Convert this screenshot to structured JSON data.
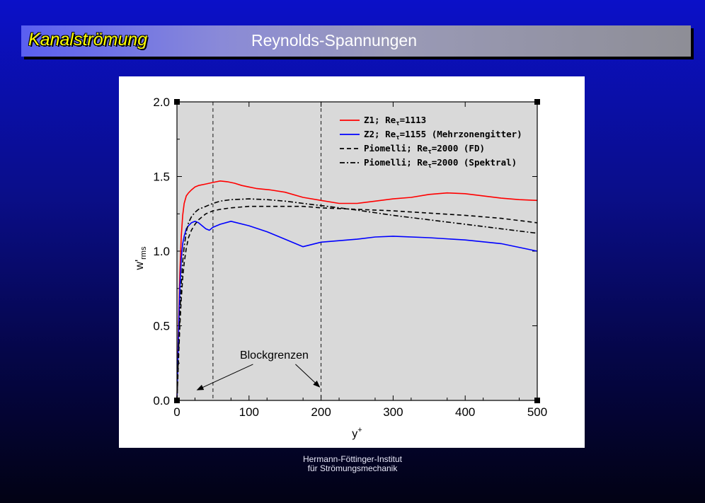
{
  "header": {
    "section": "Kanalströmung",
    "title": "Reynolds-Spannungen"
  },
  "footer": {
    "line1": "Hermann-Föttinger-Institut",
    "line2": "für Strömungsmechanik"
  },
  "chart_data": {
    "type": "line",
    "title": "",
    "xlabel": "y",
    "xlabel_superscript": "+",
    "ylabel": "w'",
    "ylabel_subscript": "rms",
    "xlim": [
      0,
      500
    ],
    "ylim": [
      0.0,
      2.0
    ],
    "xticks": [
      0,
      100,
      200,
      300,
      400,
      500
    ],
    "xtick_labels": [
      "0",
      "100",
      "200",
      "300",
      "400",
      "500"
    ],
    "yticks": [
      0.0,
      0.5,
      1.0,
      1.5,
      2.0
    ],
    "ytick_labels": [
      "0.0",
      "0.5",
      "1.0",
      "1.5",
      "2.0"
    ],
    "grid": false,
    "legend_position": "top-right",
    "vertical_lines": [
      50,
      200
    ],
    "annotation": {
      "text": "Blockgrenzen",
      "arrow_targets": [
        [
          28,
          0.07
        ],
        [
          198,
          0.09
        ]
      ],
      "anchor": [
        135,
        0.28
      ]
    },
    "series": [
      {
        "name": "Z1; Re",
        "name_sub": "τ",
        "name_rest": "=1113",
        "color": "#ff0000",
        "dash": "solid",
        "x": [
          0,
          2,
          4,
          6,
          8,
          10,
          13,
          16,
          20,
          25,
          30,
          40,
          50,
          60,
          70,
          80,
          90,
          100,
          110,
          130,
          150,
          175,
          200,
          225,
          250,
          275,
          300,
          325,
          350,
          375,
          400,
          425,
          450,
          475,
          500
        ],
        "y": [
          0.0,
          0.45,
          0.85,
          1.1,
          1.24,
          1.32,
          1.37,
          1.39,
          1.41,
          1.43,
          1.44,
          1.45,
          1.46,
          1.47,
          1.465,
          1.455,
          1.44,
          1.43,
          1.42,
          1.41,
          1.395,
          1.36,
          1.34,
          1.32,
          1.32,
          1.335,
          1.35,
          1.36,
          1.38,
          1.39,
          1.385,
          1.37,
          1.355,
          1.345,
          1.34
        ]
      },
      {
        "name": "Z2; Re",
        "name_sub": "τ",
        "name_rest": "=1155 (Mehrzonengitter)",
        "color": "#0000ff",
        "dash": "solid",
        "x": [
          0,
          2,
          4,
          6,
          8,
          10,
          13,
          16,
          20,
          25,
          30,
          35,
          40,
          45,
          50,
          60,
          75,
          100,
          125,
          150,
          175,
          200,
          225,
          250,
          275,
          300,
          350,
          400,
          450,
          500
        ],
        "y": [
          0.0,
          0.4,
          0.75,
          0.95,
          1.05,
          1.1,
          1.15,
          1.17,
          1.19,
          1.2,
          1.19,
          1.17,
          1.15,
          1.14,
          1.16,
          1.18,
          1.2,
          1.17,
          1.13,
          1.08,
          1.03,
          1.06,
          1.07,
          1.08,
          1.095,
          1.1,
          1.09,
          1.075,
          1.05,
          1.0
        ]
      },
      {
        "name": "Piomelli; Re",
        "name_sub": "τ",
        "name_rest": "=2000 (FD)",
        "color": "#000000",
        "dash": "dashed",
        "x": [
          0,
          2,
          4,
          6,
          8,
          10,
          13,
          16,
          20,
          25,
          30,
          40,
          50,
          60,
          75,
          100,
          125,
          150,
          175,
          200,
          250,
          300,
          350,
          400,
          450,
          500
        ],
        "y": [
          0.0,
          0.25,
          0.5,
          0.68,
          0.82,
          0.92,
          1.02,
          1.09,
          1.14,
          1.18,
          1.21,
          1.25,
          1.27,
          1.28,
          1.29,
          1.3,
          1.3,
          1.3,
          1.3,
          1.29,
          1.28,
          1.27,
          1.255,
          1.24,
          1.22,
          1.19
        ]
      },
      {
        "name": "Piomelli; Re",
        "name_sub": "τ",
        "name_rest": "=2000 (Spektral)",
        "color": "#000000",
        "dash": "dashdot",
        "x": [
          0,
          2,
          4,
          6,
          8,
          10,
          13,
          16,
          20,
          25,
          30,
          40,
          50,
          60,
          75,
          100,
          125,
          150,
          175,
          200,
          250,
          300,
          350,
          400,
          450,
          500
        ],
        "y": [
          0.0,
          0.3,
          0.58,
          0.78,
          0.93,
          1.03,
          1.13,
          1.19,
          1.23,
          1.26,
          1.28,
          1.3,
          1.32,
          1.335,
          1.345,
          1.35,
          1.345,
          1.335,
          1.32,
          1.305,
          1.275,
          1.24,
          1.21,
          1.18,
          1.15,
          1.12
        ]
      }
    ]
  }
}
